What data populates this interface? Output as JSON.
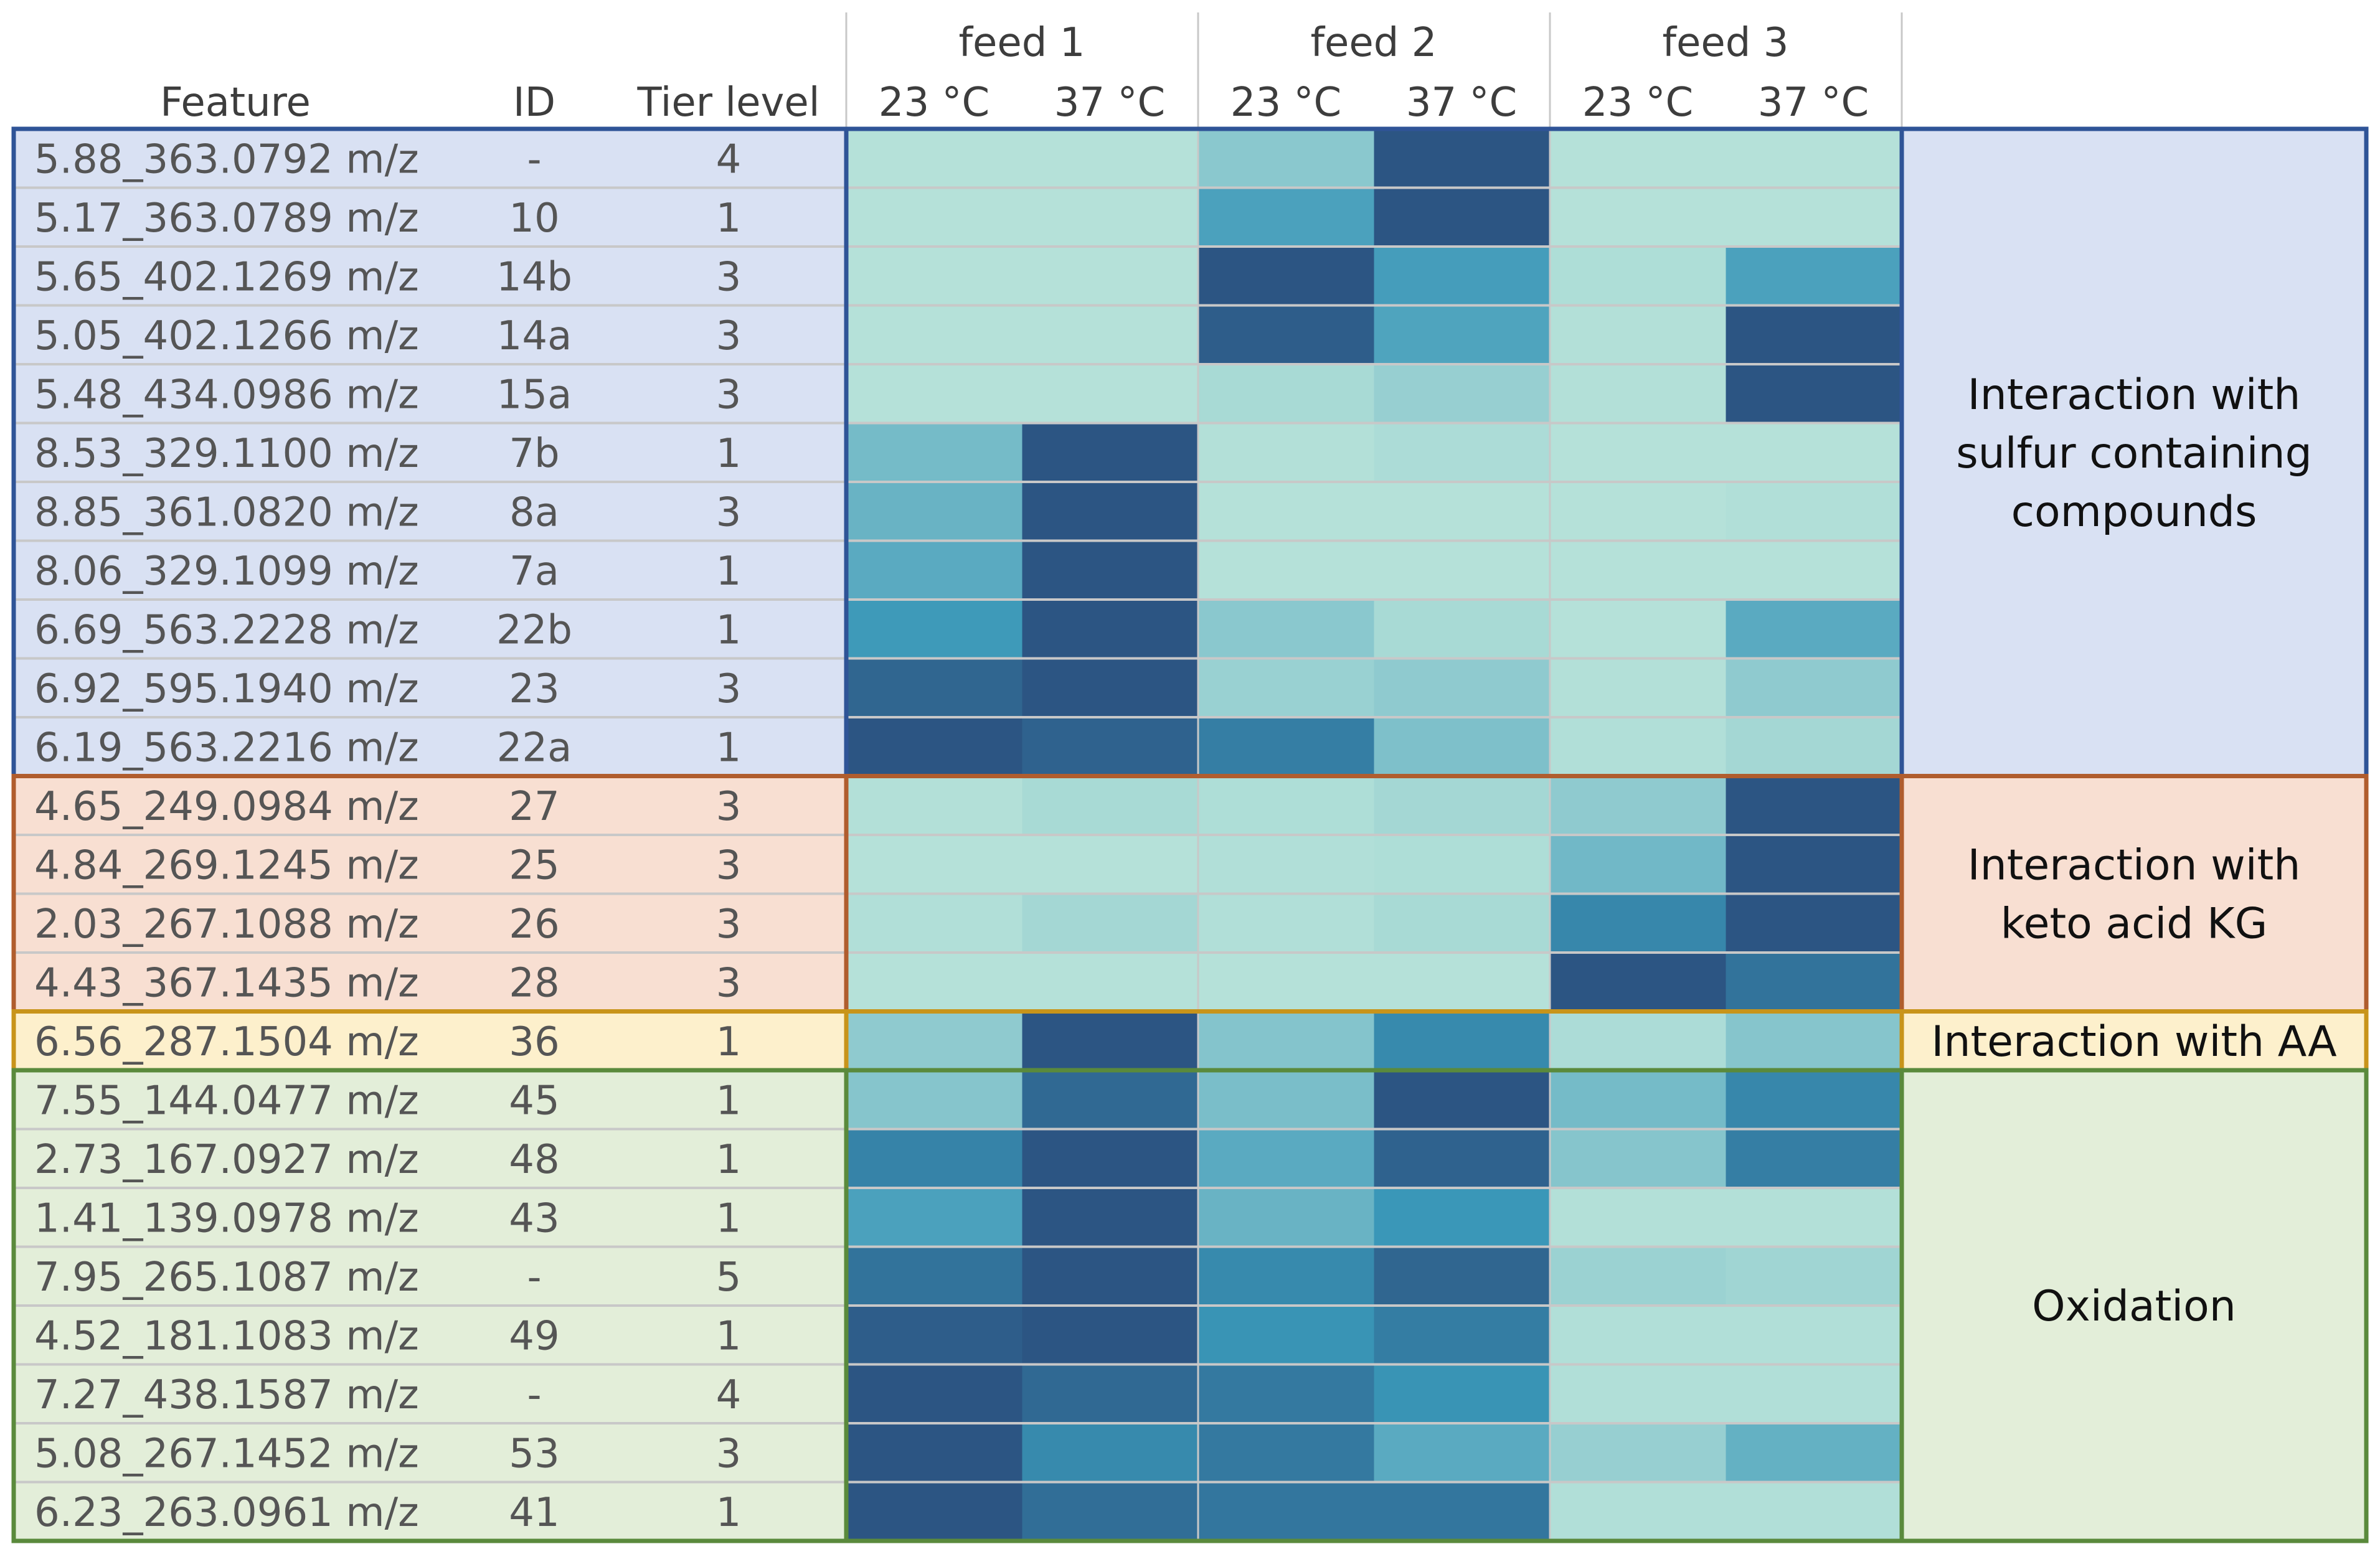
{
  "chart_data": {
    "type": "heatmap",
    "title": "",
    "header": {
      "feature": "Feature",
      "id": "ID",
      "tier": "Tier level"
    },
    "feeds": [
      "feed 1",
      "feed 2",
      "feed 3"
    ],
    "temperatures": [
      "23 °C",
      "37 °C"
    ],
    "columns": [
      "feed 1 23 °C",
      "feed 1 37 °C",
      "feed 2 23 °C",
      "feed 2 37 °C",
      "feed 3 23 °C",
      "feed 3 37 °C"
    ],
    "color_scale": {
      "min": 0,
      "max": 1,
      "low_color": "#b9e4da",
      "mid_color": "#3a97b8",
      "high_color": "#2c5583"
    },
    "groups": [
      {
        "name": "Interaction with sulfur containing compounds",
        "label_lines": [
          "Interaction with",
          "sulfur containing",
          "compounds"
        ],
        "bg": "#d9e1f3",
        "border": "#2f5497",
        "start": 0,
        "count": 11
      },
      {
        "name": "Interaction with keto acid KG",
        "label_lines": [
          "Interaction with",
          "keto acid KG"
        ],
        "bg": "#f8dfd2",
        "border": "#b05d2e",
        "start": 11,
        "count": 4
      },
      {
        "name": "Interaction with AA",
        "label_lines": [
          "Interaction with AA"
        ],
        "bg": "#fdf0cc",
        "border": "#c8941a",
        "start": 15,
        "count": 1
      },
      {
        "name": "Oxidation",
        "label_lines": [
          "Oxidation"
        ],
        "bg": "#e3eed9",
        "border": "#5a8a3c",
        "start": 16,
        "count": 8
      }
    ],
    "rows": [
      {
        "feature": "5.88_363.0792 m/z",
        "id": "-",
        "tier": "4",
        "values": [
          0.02,
          0.02,
          0.22,
          1.0,
          0.02,
          0.02
        ]
      },
      {
        "feature": "5.17_363.0789 m/z",
        "id": "10",
        "tier": "1",
        "values": [
          0.02,
          0.02,
          0.52,
          1.0,
          0.02,
          0.02
        ]
      },
      {
        "feature": "5.65_402.1269 m/z",
        "id": "14b",
        "tier": "3",
        "values": [
          0.02,
          0.02,
          1.0,
          0.55,
          0.05,
          0.52
        ]
      },
      {
        "feature": "5.05_402.1266 m/z",
        "id": "14a",
        "tier": "3",
        "values": [
          0.02,
          0.02,
          0.95,
          0.5,
          0.03,
          1.0
        ]
      },
      {
        "feature": "5.48_434.0986 m/z",
        "id": "15a",
        "tier": "3",
        "values": [
          0.02,
          0.02,
          0.08,
          0.16,
          0.03,
          1.0
        ]
      },
      {
        "feature": "8.53_329.1100 m/z",
        "id": "7b",
        "tier": "1",
        "values": [
          0.32,
          1.0,
          0.03,
          0.06,
          0.02,
          0.02
        ]
      },
      {
        "feature": "8.85_361.0820 m/z",
        "id": "8a",
        "tier": "3",
        "values": [
          0.38,
          1.0,
          0.02,
          0.02,
          0.02,
          0.04
        ]
      },
      {
        "feature": "8.06_329.1099 m/z",
        "id": "7a",
        "tier": "1",
        "values": [
          0.45,
          1.0,
          0.02,
          0.02,
          0.02,
          0.02
        ]
      },
      {
        "feature": "6.69_563.2228 m/z",
        "id": "22b",
        "tier": "1",
        "values": [
          0.58,
          1.0,
          0.22,
          0.08,
          0.02,
          0.45
        ]
      },
      {
        "feature": "6.92_595.1940 m/z",
        "id": "23",
        "tier": "3",
        "values": [
          0.9,
          1.0,
          0.15,
          0.2,
          0.03,
          0.2
        ]
      },
      {
        "feature": "6.19_563.2216 m/z",
        "id": "22a",
        "tier": "1",
        "values": [
          1.0,
          0.92,
          0.75,
          0.28,
          0.04,
          0.1
        ]
      },
      {
        "feature": "4.65_249.0984 m/z",
        "id": "27",
        "tier": "3",
        "values": [
          0.03,
          0.08,
          0.05,
          0.1,
          0.2,
          1.0
        ]
      },
      {
        "feature": "4.84_269.1245 m/z",
        "id": "25",
        "tier": "3",
        "values": [
          0.02,
          0.02,
          0.04,
          0.05,
          0.34,
          1.0
        ]
      },
      {
        "feature": "2.03_267.1088 m/z",
        "id": "26",
        "tier": "3",
        "values": [
          0.04,
          0.1,
          0.04,
          0.08,
          0.7,
          1.0
        ]
      },
      {
        "feature": "4.43_367.1435 m/z",
        "id": "28",
        "tier": "3",
        "values": [
          0.02,
          0.02,
          0.02,
          0.02,
          1.0,
          0.82
        ]
      },
      {
        "feature": "6.56_287.1504 m/z",
        "id": "36",
        "tier": "1",
        "values": [
          0.2,
          1.0,
          0.25,
          0.68,
          0.06,
          0.24
        ]
      },
      {
        "feature": "7.55_144.0477 m/z",
        "id": "45",
        "tier": "1",
        "values": [
          0.24,
          0.88,
          0.3,
          1.0,
          0.32,
          0.7
        ]
      },
      {
        "feature": "2.73_167.0927 m/z",
        "id": "48",
        "tier": "1",
        "values": [
          0.72,
          1.0,
          0.45,
          0.92,
          0.24,
          0.75
        ]
      },
      {
        "feature": "1.41_139.0978 m/z",
        "id": "43",
        "tier": "1",
        "values": [
          0.52,
          1.0,
          0.38,
          0.6,
          0.03,
          0.03
        ]
      },
      {
        "feature": "7.95_265.1087 m/z",
        "id": "-",
        "tier": "5",
        "values": [
          0.82,
          1.0,
          0.68,
          0.9,
          0.14,
          0.12
        ]
      },
      {
        "feature": "4.52_181.1083 m/z",
        "id": "49",
        "tier": "1",
        "values": [
          0.95,
          1.0,
          0.62,
          0.76,
          0.04,
          0.04
        ]
      },
      {
        "feature": "7.27_438.1587 m/z",
        "id": "-",
        "tier": "4",
        "values": [
          1.0,
          0.88,
          0.78,
          0.62,
          0.04,
          0.04
        ]
      },
      {
        "feature": "5.08_267.1452 m/z",
        "id": "53",
        "tier": "3",
        "values": [
          1.0,
          0.68,
          0.78,
          0.45,
          0.16,
          0.4
        ]
      },
      {
        "feature": "6.23_263.0961 m/z",
        "id": "41",
        "tier": "1",
        "values": [
          1.0,
          0.85,
          0.8,
          0.8,
          0.04,
          0.04
        ]
      }
    ]
  }
}
